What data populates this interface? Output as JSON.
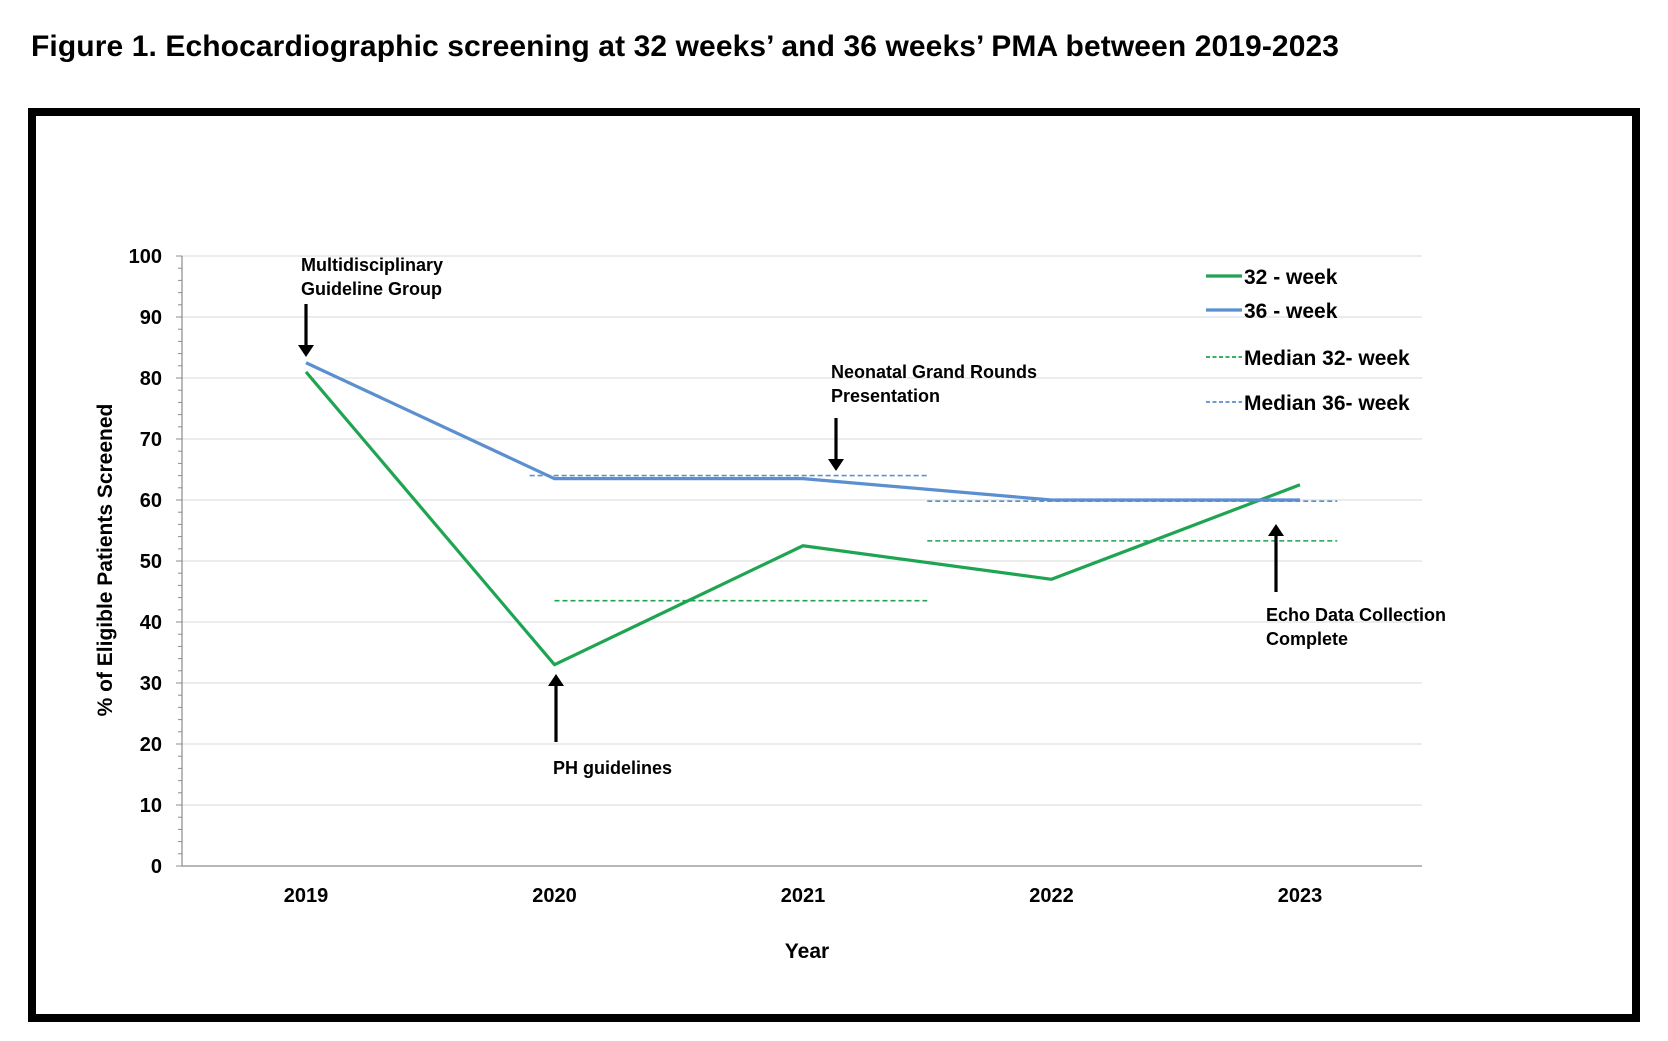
{
  "figure_title": "Figure 1.  Echocardiographic screening at 32 weeks’ and 36 weeks’ PMA between 2019-2023",
  "colors": {
    "green": "#1fa552",
    "blue": "#5b8fcf",
    "grid": "#d9d9d9",
    "axis": "#8c8c8c"
  },
  "chart_data": {
    "type": "line",
    "title": "Figure 1.  Echocardiographic screening at 32 weeks’ and 36 weeks’ PMA between 2019-2023",
    "xlabel": "Year",
    "ylabel": "% of  Eligible Patients  Screened",
    "categories": [
      "2019",
      "2020",
      "2021",
      "2022",
      "2023"
    ],
    "ylim": [
      0,
      100
    ],
    "yticks": [
      0,
      10,
      20,
      30,
      40,
      50,
      60,
      70,
      80,
      90,
      100
    ],
    "grid": true,
    "legend_position": "top-right",
    "series": [
      {
        "name": "32 - week",
        "values": [
          81,
          33,
          52.5,
          47,
          62.5
        ],
        "color": "#1fa552",
        "style": "solid"
      },
      {
        "name": "36 - week",
        "values": [
          82.5,
          63.5,
          63.5,
          60,
          60
        ],
        "color": "#5b8fcf",
        "style": "solid"
      }
    ],
    "medians": [
      {
        "name": "Median 32- week",
        "color": "#1fa552",
        "segments": [
          {
            "from": 2020,
            "to": 2021.5,
            "value": 43.5
          },
          {
            "from": 2021.5,
            "to": 2023.15,
            "value": 53.3
          }
        ]
      },
      {
        "name": "Median 36- week",
        "color": "#5b8fcf",
        "segments": [
          {
            "from": 2019.9,
            "to": 2021.5,
            "value": 64
          },
          {
            "from": 2021.5,
            "to": 2023.15,
            "value": 59.8
          }
        ]
      }
    ],
    "annotations": [
      {
        "lines": [
          "Multidisciplinary",
          "Guideline Group"
        ],
        "year": 2019,
        "arrow": "down"
      },
      {
        "lines": [
          "PH guidelines"
        ],
        "year": 2020,
        "arrow": "up"
      },
      {
        "lines": [
          "Neonatal Grand Rounds",
          "Presentation"
        ],
        "year": 2021.15,
        "arrow": "down"
      },
      {
        "lines": [
          "Echo Data Collection",
          "Complete"
        ],
        "year": 2022.9,
        "arrow": "up"
      }
    ]
  }
}
